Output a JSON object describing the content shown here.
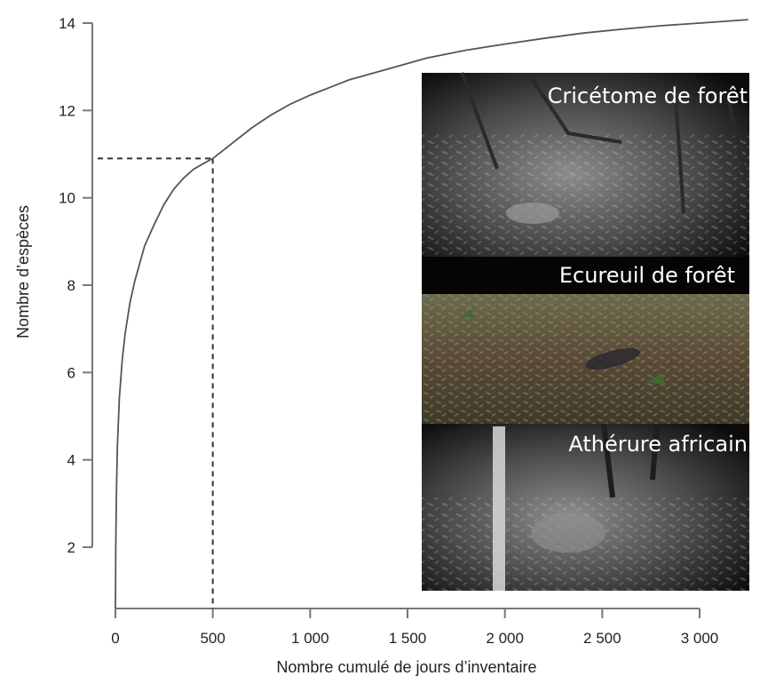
{
  "chart_data": {
    "type": "line",
    "xlabel": "Nombre cumulé de jours d’inventaire",
    "ylabel": "Nombre d’espèces",
    "xlim": [
      0,
      3250
    ],
    "ylim": [
      0.4,
      14.2
    ],
    "xticks": [
      0,
      500,
      1000,
      1500,
      2000,
      2500,
      3000
    ],
    "xtick_labels": [
      "0",
      "500",
      "1 000",
      "1 500",
      "2 000",
      "2 500",
      "3 000"
    ],
    "yticks": [
      2,
      4,
      6,
      8,
      10,
      12,
      14
    ],
    "ytick_labels": [
      "2",
      "4",
      "6",
      "8",
      "10",
      "12",
      "14"
    ],
    "grid": false,
    "series": [
      {
        "x": [
          0,
          2,
          5,
          10,
          20,
          35,
          50,
          75,
          100,
          150,
          200,
          250,
          300,
          350,
          400,
          450,
          500,
          600,
          700,
          800,
          900,
          1000,
          1200,
          1400,
          1600,
          1800,
          2000,
          2200,
          2400,
          2600,
          2800,
          3000,
          3250
        ],
        "values": [
          0.6,
          2.0,
          3.2,
          4.3,
          5.4,
          6.3,
          6.9,
          7.6,
          8.1,
          8.9,
          9.4,
          9.85,
          10.2,
          10.45,
          10.65,
          10.78,
          10.9,
          11.25,
          11.6,
          11.9,
          12.15,
          12.35,
          12.7,
          12.95,
          13.2,
          13.38,
          13.52,
          13.65,
          13.77,
          13.86,
          13.94,
          14.0,
          14.08
        ]
      }
    ],
    "annotations": [
      {
        "type": "reference-lines",
        "x": 500,
        "y": 10.9,
        "style": "dashed"
      }
    ],
    "inset_photos": [
      {
        "label": "Cricétome de forêt"
      },
      {
        "label": "Ecureuil de forêt"
      },
      {
        "label": "Athérure africain"
      }
    ]
  }
}
